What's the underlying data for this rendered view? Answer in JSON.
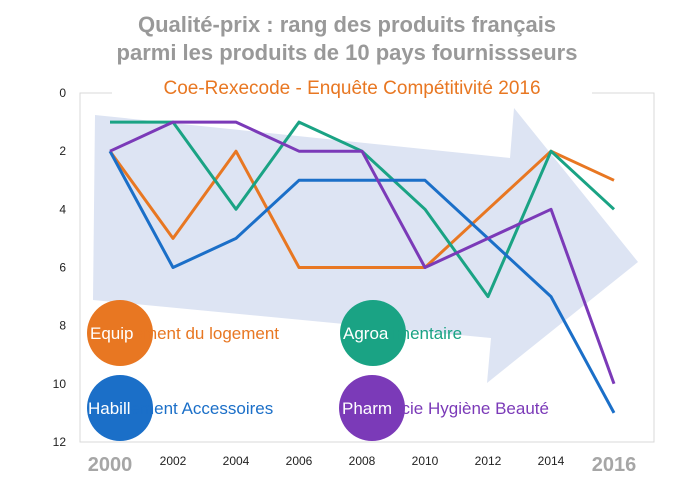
{
  "chart_data": {
    "type": "line",
    "title_lines": [
      "Qualité-prix : rang des produits français",
      "parmi les produits de 10 pays fournissseurs"
    ],
    "subtitle": "Coe-Rexecode - Enquête Compétitivité 2016",
    "x": [
      2000,
      2002,
      2004,
      2006,
      2008,
      2010,
      2012,
      2014,
      2016
    ],
    "x_tick_labels": [
      "2000",
      "2002",
      "2004",
      "2006",
      "2008",
      "2010",
      "2012",
      "2014",
      "2016"
    ],
    "y_tick_labels": [
      "0",
      "2",
      "4",
      "6",
      "8",
      "10",
      "12"
    ],
    "y_ticks": [
      0,
      2,
      4,
      6,
      8,
      10,
      12
    ],
    "ylim": [
      0,
      12
    ],
    "y_inverted": true,
    "grid": false,
    "series": [
      {
        "name": "Equipement du logement",
        "legend_highlight": "Equip",
        "legend_rest": "ement du logement",
        "color": "#e87722",
        "values": [
          2,
          5,
          2,
          6,
          6,
          6,
          4,
          2,
          3
        ]
      },
      {
        "name": "Agroalimentaire",
        "legend_highlight": "Agroa",
        "legend_rest": "limentaire",
        "color": "#1aa384",
        "values": [
          1,
          1,
          4,
          1,
          2,
          4,
          7,
          2,
          4
        ]
      },
      {
        "name": "Habillement Accessoires",
        "legend_highlight": "Habill",
        "legend_rest": "ement Accessoires",
        "color": "#1b6fc8",
        "values": [
          2,
          6,
          5,
          3,
          3,
          3,
          5,
          7,
          11
        ]
      },
      {
        "name": "Pharmacie Hygiène Beauté",
        "legend_highlight": "Pharm",
        "legend_rest": "acie Hygiène Beauté",
        "color": "#7b3ab8",
        "values": [
          2,
          1,
          1,
          2,
          2,
          6,
          5,
          4,
          10
        ]
      }
    ],
    "background_arrow_color": "#dde4f3"
  }
}
